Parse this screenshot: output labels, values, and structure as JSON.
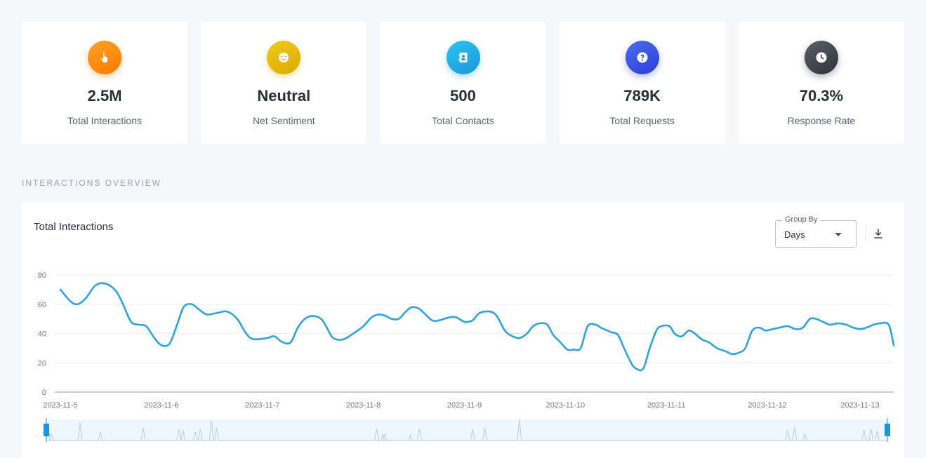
{
  "cards": [
    {
      "value": "2.5M",
      "label": "Total Interactions",
      "icon": "pointer-hand-icon",
      "color_from": "#ffa126",
      "color_to": "#ff7a00"
    },
    {
      "value": "Neutral",
      "label": "Net Sentiment",
      "icon": "neutral-face-icon",
      "color_from": "#f2cc1a",
      "color_to": "#d9a800"
    },
    {
      "value": "500",
      "label": "Total Contacts",
      "icon": "contact-book-icon",
      "color_from": "#2ec4f2",
      "color_to": "#1a96d9"
    },
    {
      "value": "789K",
      "label": "Total Requests",
      "icon": "question-circle-icon",
      "color_from": "#4e6bf2",
      "color_to": "#2c3ed6"
    },
    {
      "value": "70.3%",
      "label": "Response Rate",
      "icon": "clock-icon",
      "color_from": "#5b6068",
      "color_to": "#2e3238"
    }
  ],
  "section_title": "INTERACTIONS OVERVIEW",
  "panel": {
    "title": "Total Interactions",
    "group_by": {
      "legend": "Group By",
      "value": "Days"
    }
  },
  "chart_data": {
    "type": "line",
    "xlabel": "",
    "ylabel": "",
    "ylim": [
      0,
      80
    ],
    "yticks": [
      0,
      20,
      40,
      60,
      80
    ],
    "xticks": [
      "2023-11-5",
      "2023-11-6",
      "2023-11-7",
      "2023-11-8",
      "2023-11-9",
      "2023-11-10",
      "2023-11-11",
      "2023-11-12",
      "2023-11-13"
    ],
    "x_range_days": [
      0,
      8.25
    ],
    "grid": true,
    "line_color": "#2ea3dd",
    "series": [
      {
        "name": "",
        "points": [
          [
            0.0,
            70
          ],
          [
            0.1,
            62
          ],
          [
            0.17,
            60
          ],
          [
            0.25,
            64
          ],
          [
            0.35,
            73
          ],
          [
            0.45,
            74
          ],
          [
            0.55,
            69
          ],
          [
            0.62,
            60
          ],
          [
            0.7,
            48
          ],
          [
            0.78,
            46
          ],
          [
            0.85,
            45
          ],
          [
            0.93,
            37
          ],
          [
            1.0,
            32
          ],
          [
            1.08,
            33
          ],
          [
            1.15,
            45
          ],
          [
            1.22,
            58
          ],
          [
            1.3,
            60
          ],
          [
            1.38,
            56
          ],
          [
            1.45,
            53
          ],
          [
            1.55,
            54
          ],
          [
            1.65,
            55
          ],
          [
            1.75,
            50
          ],
          [
            1.82,
            42
          ],
          [
            1.88,
            37
          ],
          [
            1.95,
            36
          ],
          [
            2.05,
            37
          ],
          [
            2.12,
            38
          ],
          [
            2.2,
            34
          ],
          [
            2.28,
            34
          ],
          [
            2.35,
            44
          ],
          [
            2.42,
            50
          ],
          [
            2.5,
            52
          ],
          [
            2.58,
            50
          ],
          [
            2.63,
            45
          ],
          [
            2.7,
            37
          ],
          [
            2.8,
            36
          ],
          [
            2.9,
            40
          ],
          [
            3.0,
            45
          ],
          [
            3.08,
            51
          ],
          [
            3.15,
            53
          ],
          [
            3.22,
            52
          ],
          [
            3.28,
            50
          ],
          [
            3.35,
            50
          ],
          [
            3.42,
            55
          ],
          [
            3.48,
            58
          ],
          [
            3.55,
            57
          ],
          [
            3.6,
            54
          ],
          [
            3.68,
            49
          ],
          [
            3.75,
            49
          ],
          [
            3.85,
            51
          ],
          [
            3.92,
            51
          ],
          [
            4.0,
            48
          ],
          [
            4.08,
            49
          ],
          [
            4.15,
            54
          ],
          [
            4.25,
            55
          ],
          [
            4.32,
            52
          ],
          [
            4.4,
            42
          ],
          [
            4.48,
            38
          ],
          [
            4.55,
            37
          ],
          [
            4.62,
            40
          ],
          [
            4.68,
            45
          ],
          [
            4.75,
            47
          ],
          [
            4.82,
            46
          ],
          [
            4.88,
            39
          ],
          [
            4.95,
            34
          ],
          [
            5.02,
            29
          ],
          [
            5.08,
            29
          ],
          [
            5.15,
            30
          ],
          [
            5.22,
            45
          ],
          [
            5.3,
            46
          ],
          [
            5.35,
            44
          ],
          [
            5.45,
            41
          ],
          [
            5.52,
            39
          ],
          [
            5.58,
            30
          ],
          [
            5.65,
            20
          ],
          [
            5.7,
            16
          ],
          [
            5.77,
            16
          ],
          [
            5.83,
            29
          ],
          [
            5.9,
            42
          ],
          [
            5.95,
            45
          ],
          [
            6.03,
            45
          ],
          [
            6.08,
            40
          ],
          [
            6.15,
            38
          ],
          [
            6.22,
            42
          ],
          [
            6.28,
            40
          ],
          [
            6.35,
            36
          ],
          [
            6.42,
            34
          ],
          [
            6.5,
            30
          ],
          [
            6.58,
            28
          ],
          [
            6.65,
            26
          ],
          [
            6.72,
            27
          ],
          [
            6.78,
            30
          ],
          [
            6.85,
            42
          ],
          [
            6.92,
            44
          ],
          [
            6.98,
            42
          ],
          [
            7.05,
            43
          ],
          [
            7.12,
            44
          ],
          [
            7.2,
            45
          ],
          [
            7.28,
            43
          ],
          [
            7.35,
            44
          ],
          [
            7.42,
            50
          ],
          [
            7.48,
            50
          ],
          [
            7.55,
            48
          ],
          [
            7.62,
            46
          ],
          [
            7.7,
            47
          ],
          [
            7.78,
            46
          ],
          [
            7.85,
            44
          ],
          [
            7.92,
            43
          ],
          [
            7.98,
            44
          ],
          [
            8.05,
            46
          ],
          [
            8.12,
            47
          ],
          [
            8.2,
            46
          ],
          [
            8.25,
            32
          ]
        ]
      }
    ],
    "navigator": {
      "type": "area",
      "spikes": [
        0.02,
        0.05,
        0.33,
        0.53,
        0.95,
        1.3,
        1.34,
        1.46,
        1.51,
        1.62,
        1.67,
        3.24,
        3.3,
        3.32,
        3.57,
        3.66,
        4.18,
        4.3,
        4.64,
        7.27,
        7.34,
        7.44,
        8.02,
        8.09,
        8.15
      ],
      "spike_heights": [
        0.6,
        0.3,
        0.85,
        0.4,
        0.6,
        0.55,
        0.5,
        0.4,
        0.55,
        0.95,
        0.6,
        0.55,
        0.3,
        0.3,
        0.25,
        0.55,
        0.55,
        0.6,
        1.0,
        0.5,
        0.65,
        0.3,
        0.5,
        0.55,
        0.45
      ]
    }
  }
}
